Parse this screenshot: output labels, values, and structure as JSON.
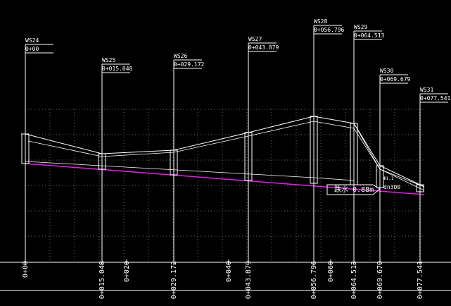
{
  "wells": [
    {
      "name": "WS24",
      "chainage": "0+00"
    },
    {
      "name": "WS25",
      "chainage": "0+015.048"
    },
    {
      "name": "WS26",
      "chainage": "0+029.172"
    },
    {
      "name": "WS27",
      "chainage": "0+043.879"
    },
    {
      "name": "WS28",
      "chainage": "0+056.796"
    },
    {
      "name": "WS29",
      "chainage": "0+064.513"
    },
    {
      "name": "WS30",
      "chainage": "0+069.679"
    },
    {
      "name": "WS31",
      "chainage": "0+077.541"
    }
  ],
  "stations": [
    "0+00",
    "0+015.048",
    "0+020",
    "0+029.172",
    "0+040",
    "0+043.879",
    "0+056.796",
    "0+060",
    "0+064.513",
    "0+069.679",
    "0+077.541"
  ],
  "annotations": {
    "drop": "跌水 0.88m",
    "pipe": "dn300",
    "diameter": "Φ1.1"
  }
}
